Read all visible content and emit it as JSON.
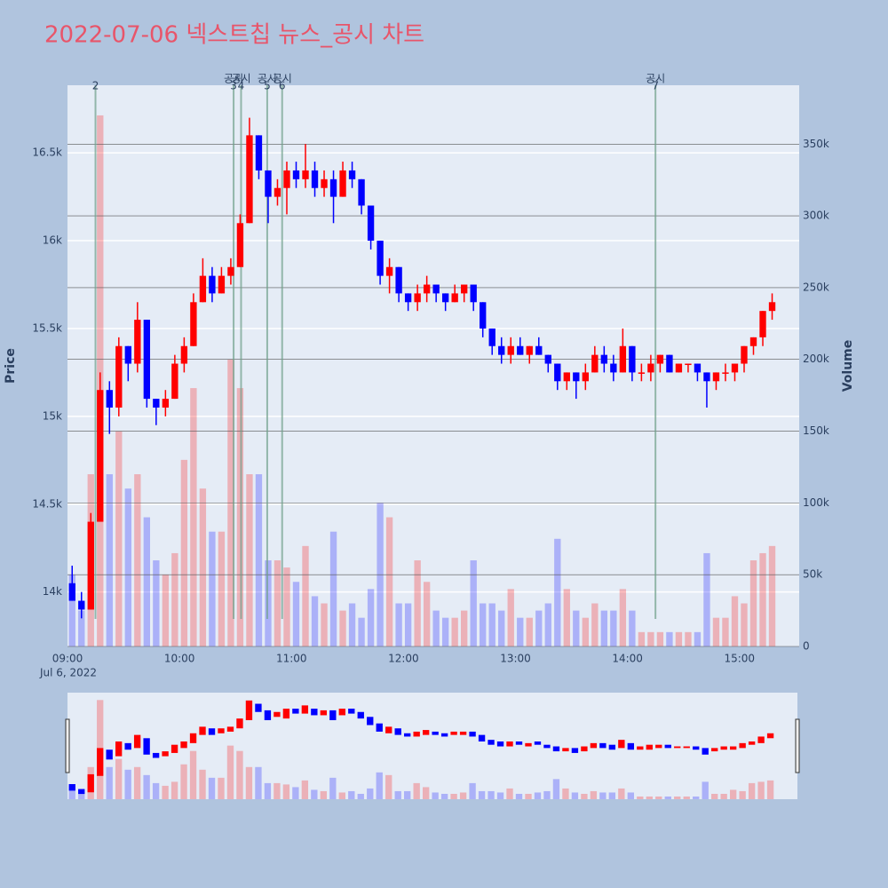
{
  "chart_data": {
    "type": "candlestick",
    "title": "2022-07-06 넥스트칩 뉴스_공시 차트",
    "ylabel": "Price",
    "y2label": "Volume",
    "x_sublabel": "Jul 6, 2022",
    "x": [
      "09:00",
      "09:05",
      "09:10",
      "09:15",
      "09:20",
      "09:25",
      "09:30",
      "09:35",
      "09:40",
      "09:45",
      "09:50",
      "09:55",
      "10:00",
      "10:05",
      "10:10",
      "10:15",
      "10:20",
      "10:25",
      "10:30",
      "10:35",
      "10:40",
      "10:45",
      "10:50",
      "10:55",
      "11:00",
      "11:05",
      "11:10",
      "11:15",
      "11:20",
      "11:25",
      "11:30",
      "11:35",
      "11:40",
      "11:45",
      "11:50",
      "11:55",
      "12:00",
      "12:05",
      "12:10",
      "12:15",
      "12:20",
      "12:25",
      "12:30",
      "12:35",
      "12:40",
      "12:45",
      "12:50",
      "12:55",
      "13:00",
      "13:05",
      "13:10",
      "13:15",
      "13:20",
      "13:25",
      "13:30",
      "13:35",
      "13:40",
      "13:45",
      "13:50",
      "13:55",
      "14:00",
      "14:05",
      "14:10",
      "14:15",
      "14:20",
      "14:25",
      "14:30",
      "14:35",
      "14:40",
      "14:45",
      "14:50",
      "14:55",
      "15:00",
      "15:05",
      "15:10",
      "15:15"
    ],
    "open": [
      14050,
      13950,
      13900,
      14400,
      15150,
      15050,
      15400,
      15300,
      15550,
      15100,
      15050,
      15100,
      15300,
      15400,
      15650,
      15800,
      15700,
      15800,
      15850,
      16100,
      16600,
      16400,
      16250,
      16300,
      16400,
      16350,
      16400,
      16300,
      16350,
      16250,
      16400,
      16350,
      16200,
      16000,
      15800,
      15850,
      15700,
      15650,
      15700,
      15750,
      15700,
      15650,
      15700,
      15750,
      15650,
      15500,
      15400,
      15350,
      15400,
      15350,
      15400,
      15350,
      15300,
      15200,
      15250,
      15200,
      15250,
      15350,
      15300,
      15250,
      15400,
      15250,
      15250,
      15300,
      15350,
      15250,
      15300,
      15300,
      15250,
      15200,
      15250,
      15250,
      15300,
      15400,
      15450,
      15600
    ],
    "high": [
      14150,
      14000,
      14450,
      15250,
      15200,
      15450,
      15400,
      15650,
      15550,
      15100,
      15150,
      15350,
      15450,
      15700,
      15900,
      15850,
      15850,
      15900,
      16150,
      16700,
      16600,
      16400,
      16350,
      16450,
      16450,
      16550,
      16450,
      16400,
      16400,
      16450,
      16450,
      16350,
      16200,
      16000,
      15900,
      15850,
      15700,
      15750,
      15800,
      15750,
      15700,
      15750,
      15750,
      15750,
      15650,
      15500,
      15450,
      15450,
      15450,
      15400,
      15450,
      15350,
      15300,
      15250,
      15250,
      15300,
      15400,
      15400,
      15350,
      15500,
      15400,
      15300,
      15350,
      15350,
      15350,
      15300,
      15300,
      15300,
      15250,
      15250,
      15300,
      15300,
      15400,
      15450,
      15600,
      15700
    ],
    "low": [
      13950,
      13850,
      13900,
      14400,
      14900,
      15000,
      15200,
      15250,
      15050,
      14950,
      15000,
      15100,
      15250,
      15400,
      15650,
      15650,
      15700,
      15750,
      15850,
      16100,
      16350,
      16100,
      16200,
      16150,
      16300,
      16300,
      16250,
      16250,
      16100,
      16250,
      16300,
      16150,
      15950,
      15750,
      15700,
      15650,
      15600,
      15600,
      15650,
      15650,
      15600,
      15650,
      15650,
      15600,
      15450,
      15350,
      15300,
      15300,
      15350,
      15300,
      15350,
      15250,
      15150,
      15150,
      15100,
      15150,
      15250,
      15250,
      15200,
      15250,
      15200,
      15200,
      15200,
      15250,
      15250,
      15250,
      15250,
      15200,
      15050,
      15150,
      15200,
      15200,
      15250,
      15350,
      15400,
      15550
    ],
    "close": [
      13950,
      13900,
      14400,
      15150,
      15050,
      15400,
      15300,
      15550,
      15100,
      15050,
      15100,
      15300,
      15400,
      15650,
      15800,
      15700,
      15800,
      15850,
      16100,
      16600,
      16400,
      16250,
      16300,
      16400,
      16350,
      16400,
      16300,
      16350,
      16250,
      16400,
      16350,
      16200,
      16000,
      15800,
      15850,
      15700,
      15650,
      15700,
      15750,
      15700,
      15650,
      15700,
      15750,
      15650,
      15500,
      15400,
      15350,
      15400,
      15350,
      15400,
      15350,
      15300,
      15200,
      15250,
      15200,
      15250,
      15350,
      15300,
      15250,
      15400,
      15250,
      15250,
      15300,
      15350,
      15250,
      15300,
      15300,
      15250,
      15200,
      15250,
      15250,
      15300,
      15400,
      15450,
      15600,
      15650
    ],
    "volume": [
      50000,
      25000,
      120000,
      370000,
      120000,
      150000,
      110000,
      120000,
      90000,
      60000,
      50000,
      65000,
      130000,
      180000,
      110000,
      80000,
      80000,
      200000,
      180000,
      120000,
      120000,
      60000,
      60000,
      55000,
      45000,
      70000,
      35000,
      30000,
      80000,
      25000,
      30000,
      20000,
      40000,
      100000,
      90000,
      30000,
      30000,
      60000,
      45000,
      25000,
      20000,
      20000,
      25000,
      60000,
      30000,
      30000,
      25000,
      40000,
      20000,
      20000,
      25000,
      30000,
      75000,
      40000,
      25000,
      20000,
      30000,
      25000,
      25000,
      40000,
      25000,
      10000,
      10000,
      10000,
      10000,
      10000,
      10000,
      10000,
      65000,
      20000,
      20000,
      35000,
      30000,
      60000,
      65000,
      70000
    ],
    "up_color": "#ff0000",
    "down_color": "#0000ff",
    "xlim": [
      "09:00",
      "15:32"
    ],
    "xticks": [
      "09:00",
      "10:00",
      "11:00",
      "12:00",
      "13:00",
      "14:00",
      "15:00"
    ],
    "ylim": [
      13690,
      16885
    ],
    "yticks": [
      {
        "value": 14000,
        "label": "14k"
      },
      {
        "value": 14500,
        "label": "14.5k"
      },
      {
        "value": 15000,
        "label": "15k"
      },
      {
        "value": 15500,
        "label": "15.5k"
      },
      {
        "value": 16000,
        "label": "16k"
      },
      {
        "value": 16500,
        "label": "16.5k"
      }
    ],
    "y2lim": [
      0,
      391000
    ],
    "y2ticks": [
      0,
      {
        "value": 50000,
        "label": "50k"
      },
      {
        "value": 100000,
        "label": "100k"
      },
      {
        "value": 150000,
        "label": "150k"
      },
      {
        "value": 200000,
        "label": "200k"
      },
      {
        "value": 250000,
        "label": "250k"
      },
      {
        "value": 300000,
        "label": "300k"
      },
      {
        "value": 350000,
        "label": "350k"
      }
    ],
    "annotations": [
      {
        "x": "09:15",
        "label": "2"
      },
      {
        "x": "10:29",
        "label": "3",
        "text": "공시"
      },
      {
        "x": "10:33",
        "label": "4",
        "text": "공시"
      },
      {
        "x": "10:47",
        "label": "5",
        "text": "공시"
      },
      {
        "x": "10:55",
        "label": "6",
        "text": "공시"
      },
      {
        "x": "14:15",
        "label": "7",
        "text": "공시"
      }
    ]
  }
}
